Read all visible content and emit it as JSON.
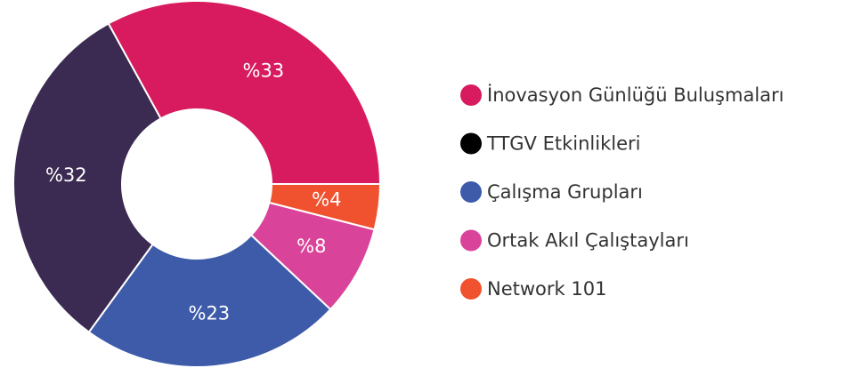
{
  "chart_data": {
    "type": "donut",
    "categories": [
      "İnovasyon Günlüğü Buluşmaları",
      "TTGV Etkinlikleri",
      "Çalışma Grupları",
      "Ortak Akıl Çalıştayları",
      "Network 101"
    ],
    "values": [
      33,
      32,
      23,
      8,
      4
    ],
    "value_labels": [
      "%33",
      "%32",
      "%23",
      "%8",
      "%4"
    ],
    "colors": [
      "#d81b5e",
      "#3b2a52",
      "#3d5ba9",
      "#d94399",
      "#f0522f"
    ],
    "legend_colors": [
      "#d81b5e",
      "#000000",
      "#3d5ba9",
      "#d94399",
      "#f0522f"
    ],
    "legend": "right"
  }
}
